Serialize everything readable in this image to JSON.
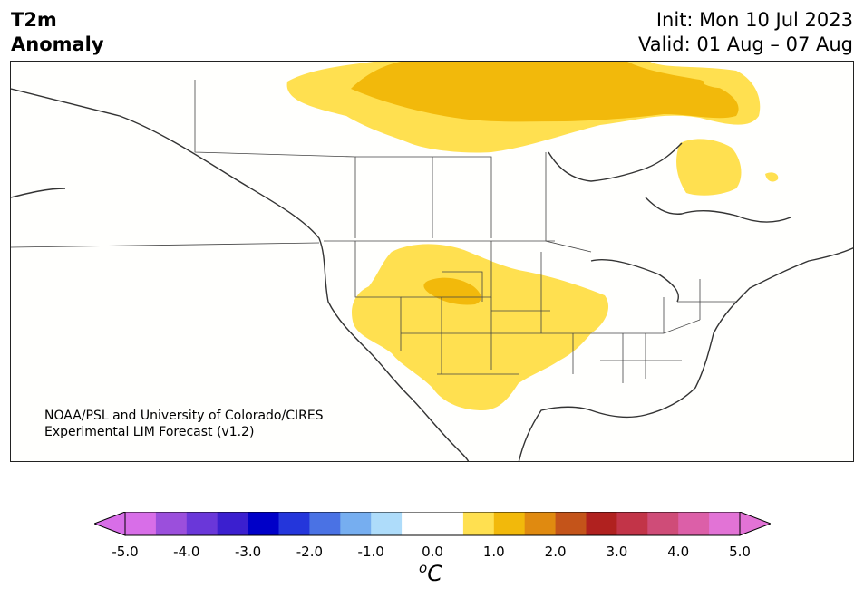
{
  "title": {
    "left_line1": "T2m",
    "left_line2": "Anomaly",
    "right_line1": "Init: Mon 10 Jul 2023",
    "right_line2": "Valid: 01 Aug – 07 Aug"
  },
  "credit": {
    "line1": "NOAA/PSL and University of Colorado/CIRES",
    "line2": "Experimental LIM Forecast (v1.2)"
  },
  "colorbar": {
    "unit_base": "C",
    "unit_super": "o",
    "ticks": [
      "-5.0",
      "-4.0",
      "-3.0",
      "-2.0",
      "-1.0",
      "0.0",
      "1.0",
      "2.0",
      "3.0",
      "4.0",
      "5.0"
    ],
    "colors": [
      "#d86ee8",
      "#9b4fdc",
      "#6a37d9",
      "#3b1fcf",
      "#0000c8",
      "#2436db",
      "#4a72e4",
      "#76aef0",
      "#aedcfa",
      "#ffffff",
      "#ffffff",
      "#ffe050",
      "#f2b90b",
      "#e08a10",
      "#c4541a",
      "#b0211f",
      "#c23448",
      "#cf4c78",
      "#dc5fa8",
      "#e273d6"
    ],
    "under_color": "#d86ee8",
    "over_color": "#e273d6"
  },
  "map": {
    "anomaly_colors": {
      "plus_half_to_one": "#ffe050",
      "one_to_one_half": "#f2b90b"
    },
    "land_fill": "#fffffd",
    "coast_color": "#333333"
  }
}
